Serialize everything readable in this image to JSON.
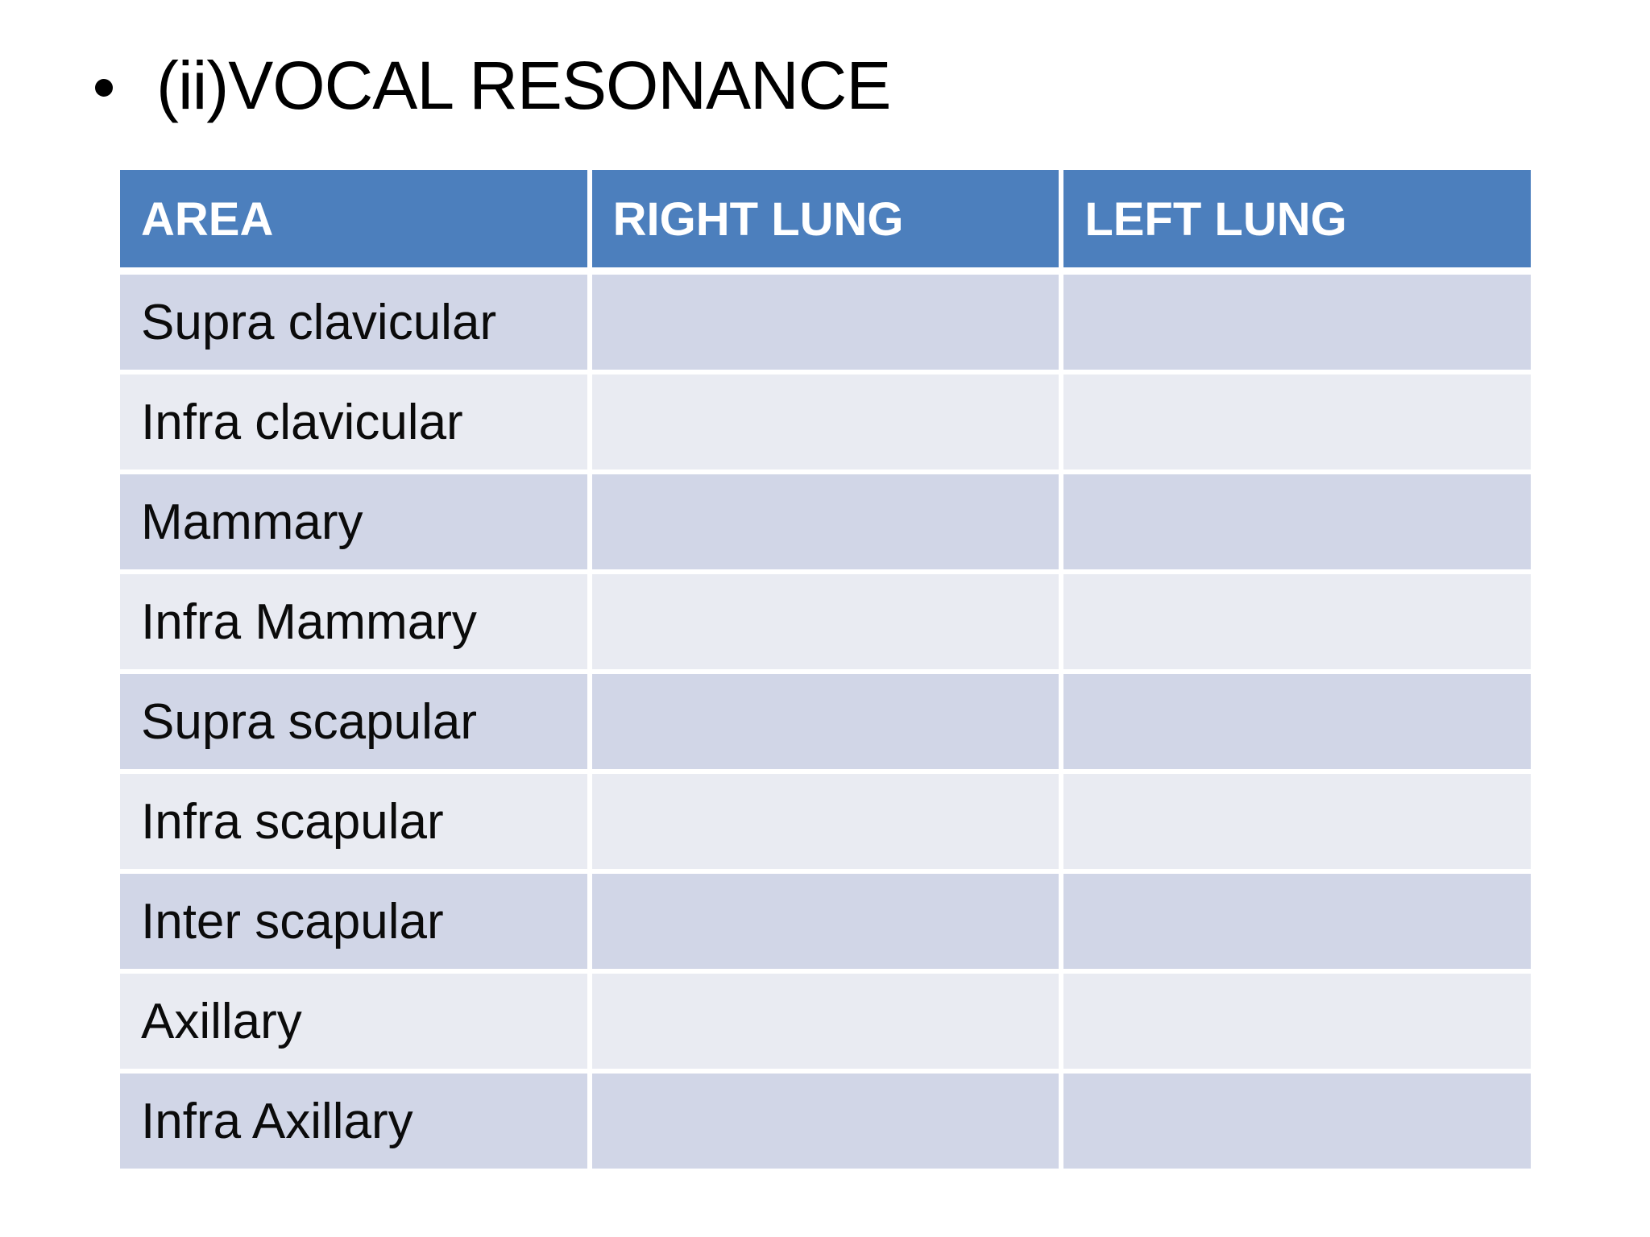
{
  "slide": {
    "title": "(ii)VOCAL RESONANCE"
  },
  "table": {
    "columns": [
      "AREA",
      "RIGHT LUNG",
      "LEFT LUNG"
    ],
    "rows": [
      {
        "area": "Supra clavicular",
        "right_lung": "",
        "left_lung": ""
      },
      {
        "area": "Infra clavicular",
        "right_lung": "",
        "left_lung": ""
      },
      {
        "area": "Mammary",
        "right_lung": "",
        "left_lung": ""
      },
      {
        "area": "Infra Mammary",
        "right_lung": "",
        "left_lung": ""
      },
      {
        "area": "Supra scapular",
        "right_lung": "",
        "left_lung": ""
      },
      {
        "area": "Infra scapular",
        "right_lung": "",
        "left_lung": ""
      },
      {
        "area": "Inter scapular",
        "right_lung": "",
        "left_lung": ""
      },
      {
        "area": "Axillary",
        "right_lung": "",
        "left_lung": ""
      },
      {
        "area": "Infra Axillary",
        "right_lung": "",
        "left_lung": ""
      }
    ],
    "colors": {
      "header_bg": "#4C7FBD",
      "header_text": "#FFFFFF",
      "band_dark": "#D1D6E7",
      "band_light": "#E9EBF2",
      "body_text": "#0B0B0B",
      "border": "#FFFFFF"
    }
  }
}
